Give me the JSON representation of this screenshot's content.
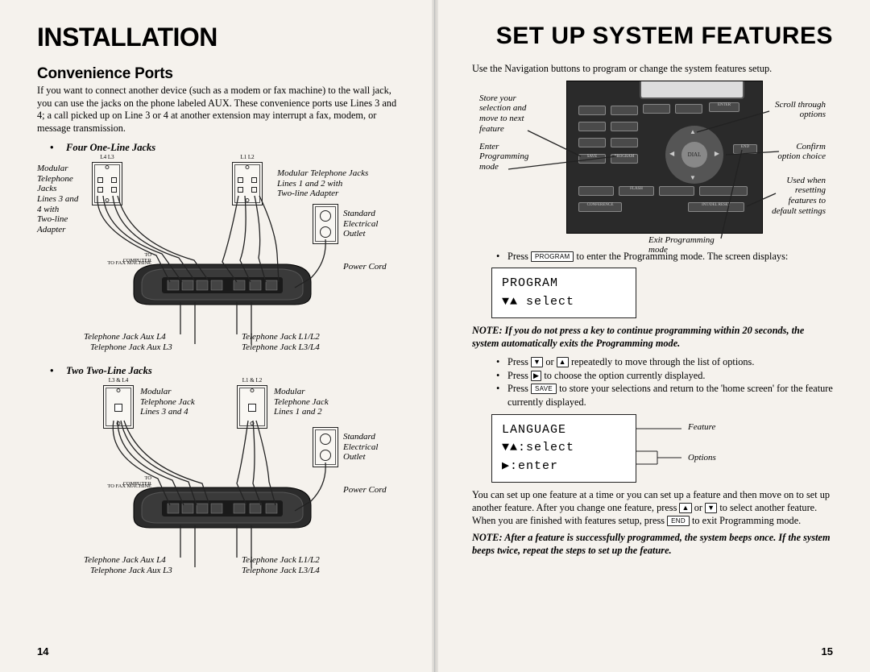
{
  "left": {
    "title": "Installation",
    "subheading": "Convenience Ports",
    "intro": "If you want to connect another device (such as a modem or fax machine) to the wall jack, you can use the jacks on the phone labeled AUX. These convenience ports use Lines 3 and 4; a call picked up on Line 3 or 4 at another extension may interrupt a fax, modem, or message transmission.",
    "section1": "Four One-Line Jacks",
    "section2": "Two Two-Line Jacks",
    "labels": {
      "modJacks34": "Modular\nTelephone\nJacks\nLines 3 and\n4 with\nTwo-line\nAdapter",
      "modJacks12": "Modular Telephone Jacks\nLines 1 and 2 with\nTwo-line Adapter",
      "outlet": "Standard\nElectrical\nOutlet",
      "power": "Power Cord",
      "toComputer": "TO COMPUTER",
      "toFax": "TO FAX MACHINE",
      "auxL4": "Telephone Jack Aux L4",
      "auxL3": "Telephone Jack Aux L3",
      "l12": "Telephone Jack L1/L2",
      "l34": "Telephone Jack L3/L4",
      "modJack34b": "Modular\nTelephone Jack\nLines 3 and 4",
      "modJack12b": "Modular\nTelephone Jack\nLines 1 and 2",
      "jackTop1a": "L4      L3",
      "jackTop1b": "L1      L2",
      "jackTop2a": "L3 & L4",
      "jackTop2b": "L1 & L2"
    },
    "pageNum": "14"
  },
  "right": {
    "title": "Set Up System Features",
    "intro": "Use the Navigation buttons to program or change the system features setup.",
    "navLabels": {
      "store": "Store your\nselection and\nmove to next\nfeature",
      "enterProg": "Enter\nProgramming\nmode",
      "exitProg": "Exit Programming\nmode",
      "scroll": "Scroll through\noptions",
      "confirm": "Confirm\noption choice",
      "reset": "Used when\nresetting\nfeatures to\ndefault settings"
    },
    "step1": " to enter the Programming mode. The screen displays:",
    "programLabel": "PROGRAM",
    "lcd1line1": "PROGRAM",
    "lcd1line2": "▼▲ select",
    "note1a": "NOTE:",
    "note1b": "  If you do not press a key to continue programming within 20 seconds, the system automatically exits the Programming mode.",
    "bullets": {
      "b1a": "Press ",
      "b1b": " or ",
      "b1c": " repeatedly to move through the list of options.",
      "b2a": "Press ",
      "b2b": " to choose the option currently displayed.",
      "b3a": "Press ",
      "b3b": " to store your selections and return to the 'home screen' for the feature currently displayed."
    },
    "saveLabel": "SAVE",
    "lcd2line1": "LANGUAGE",
    "lcd2line2": "▼▲:select",
    "lcd2line3": "▶:enter",
    "featureLabel": "Feature",
    "optionsLabel": "Options",
    "para2": "You can set up one feature at a time or you can set up a feature and then move on to set up another feature. After you change one feature, press ",
    "para2b": " or ",
    "para2c": " to select another feature. When you are finished with features setup, press ",
    "para2d": " to exit Programming mode.",
    "endLabel": "END",
    "note2a": "NOTE:",
    "note2b": "  After a feature is successfully programmed, the system beeps once. If the system beeps twice, repeat the steps to set up the feature.",
    "pageNum": "15"
  }
}
